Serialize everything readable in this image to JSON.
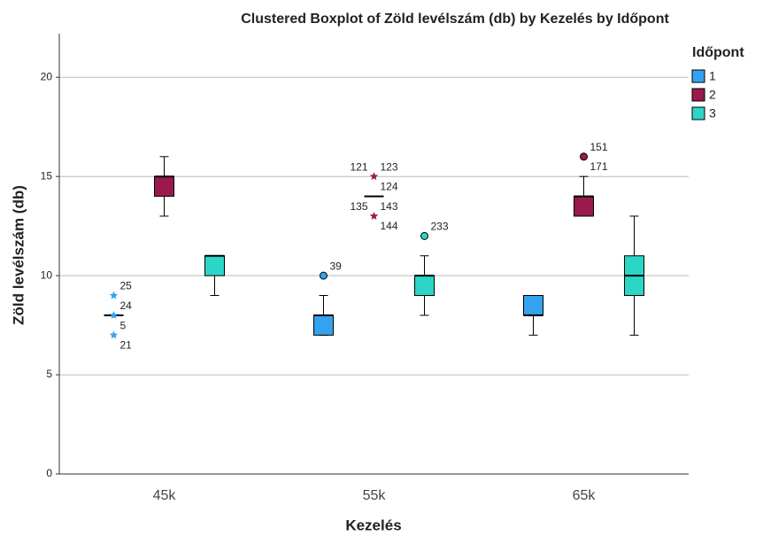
{
  "chart_data": {
    "type": "boxplot",
    "title": "Clustered Boxplot of Zöld levélszám (db) by Kezelés by Időpont",
    "x_label": "Kezelés",
    "y_label": "Zöld levélszám (db)",
    "legend_title": "Időpont",
    "legend": "right",
    "grid": true,
    "categories": [
      "45k",
      "55k",
      "65k"
    ],
    "ylim": [
      0,
      22.2
    ],
    "yticks": [
      0,
      5,
      10,
      15,
      20
    ],
    "series": [
      {
        "name": "1",
        "color": "#33a3f0",
        "outlier_marker": "star",
        "boxes": [
          {
            "min": 8,
            "q1": 8,
            "median": 8,
            "q3": 8,
            "max": 8,
            "outliers": [
              {
                "value": 9,
                "marker": "star",
                "labels": [
                  "25"
                ]
              },
              {
                "value": 8,
                "marker": "star",
                "labels": [
                  "24"
                ]
              },
              {
                "value": 7,
                "marker": "star",
                "labels": [
                  "5",
                  "21"
                ]
              }
            ]
          },
          {
            "min": 7,
            "q1": 7,
            "median": 8,
            "q3": 8,
            "max": 9,
            "outliers": [
              {
                "value": 10,
                "marker": "circle",
                "labels": [
                  "39"
                ]
              }
            ]
          },
          {
            "min": 7,
            "q1": 8,
            "median": 8,
            "q3": 9,
            "max": 9,
            "outliers": []
          }
        ]
      },
      {
        "name": "2",
        "color": "#9b1a4e",
        "boxes": [
          {
            "min": 13,
            "q1": 14,
            "median": 15,
            "q3": 15,
            "max": 16,
            "outliers": []
          },
          {
            "min": 14,
            "q1": 14,
            "median": 14,
            "q3": 14,
            "max": 14,
            "outliers": [
              {
                "value": 15,
                "marker": "star",
                "labels": [
                  "123",
                  "124",
                  "121"
                ]
              },
              {
                "value": 13,
                "marker": "star",
                "labels": [
                  "143",
                  "144",
                  "135"
                ]
              }
            ]
          },
          {
            "min": 13,
            "q1": 13,
            "median": 14,
            "q3": 14,
            "max": 15,
            "outliers": [
              {
                "value": 16,
                "marker": "circle",
                "labels": [
                  "151",
                  "171"
                ]
              }
            ]
          }
        ]
      },
      {
        "name": "3",
        "color": "#2bd6c6",
        "boxes": [
          {
            "min": 9,
            "q1": 10,
            "median": 11,
            "q3": 11,
            "max": 11,
            "outliers": []
          },
          {
            "min": 8,
            "q1": 9,
            "median": 10,
            "q3": 10,
            "max": 11,
            "outliers": [
              {
                "value": 12,
                "marker": "circle",
                "labels": [
                  "233"
                ]
              }
            ]
          },
          {
            "min": 7,
            "q1": 9,
            "median": 10,
            "q3": 11,
            "max": 13,
            "outliers": []
          }
        ]
      }
    ]
  }
}
